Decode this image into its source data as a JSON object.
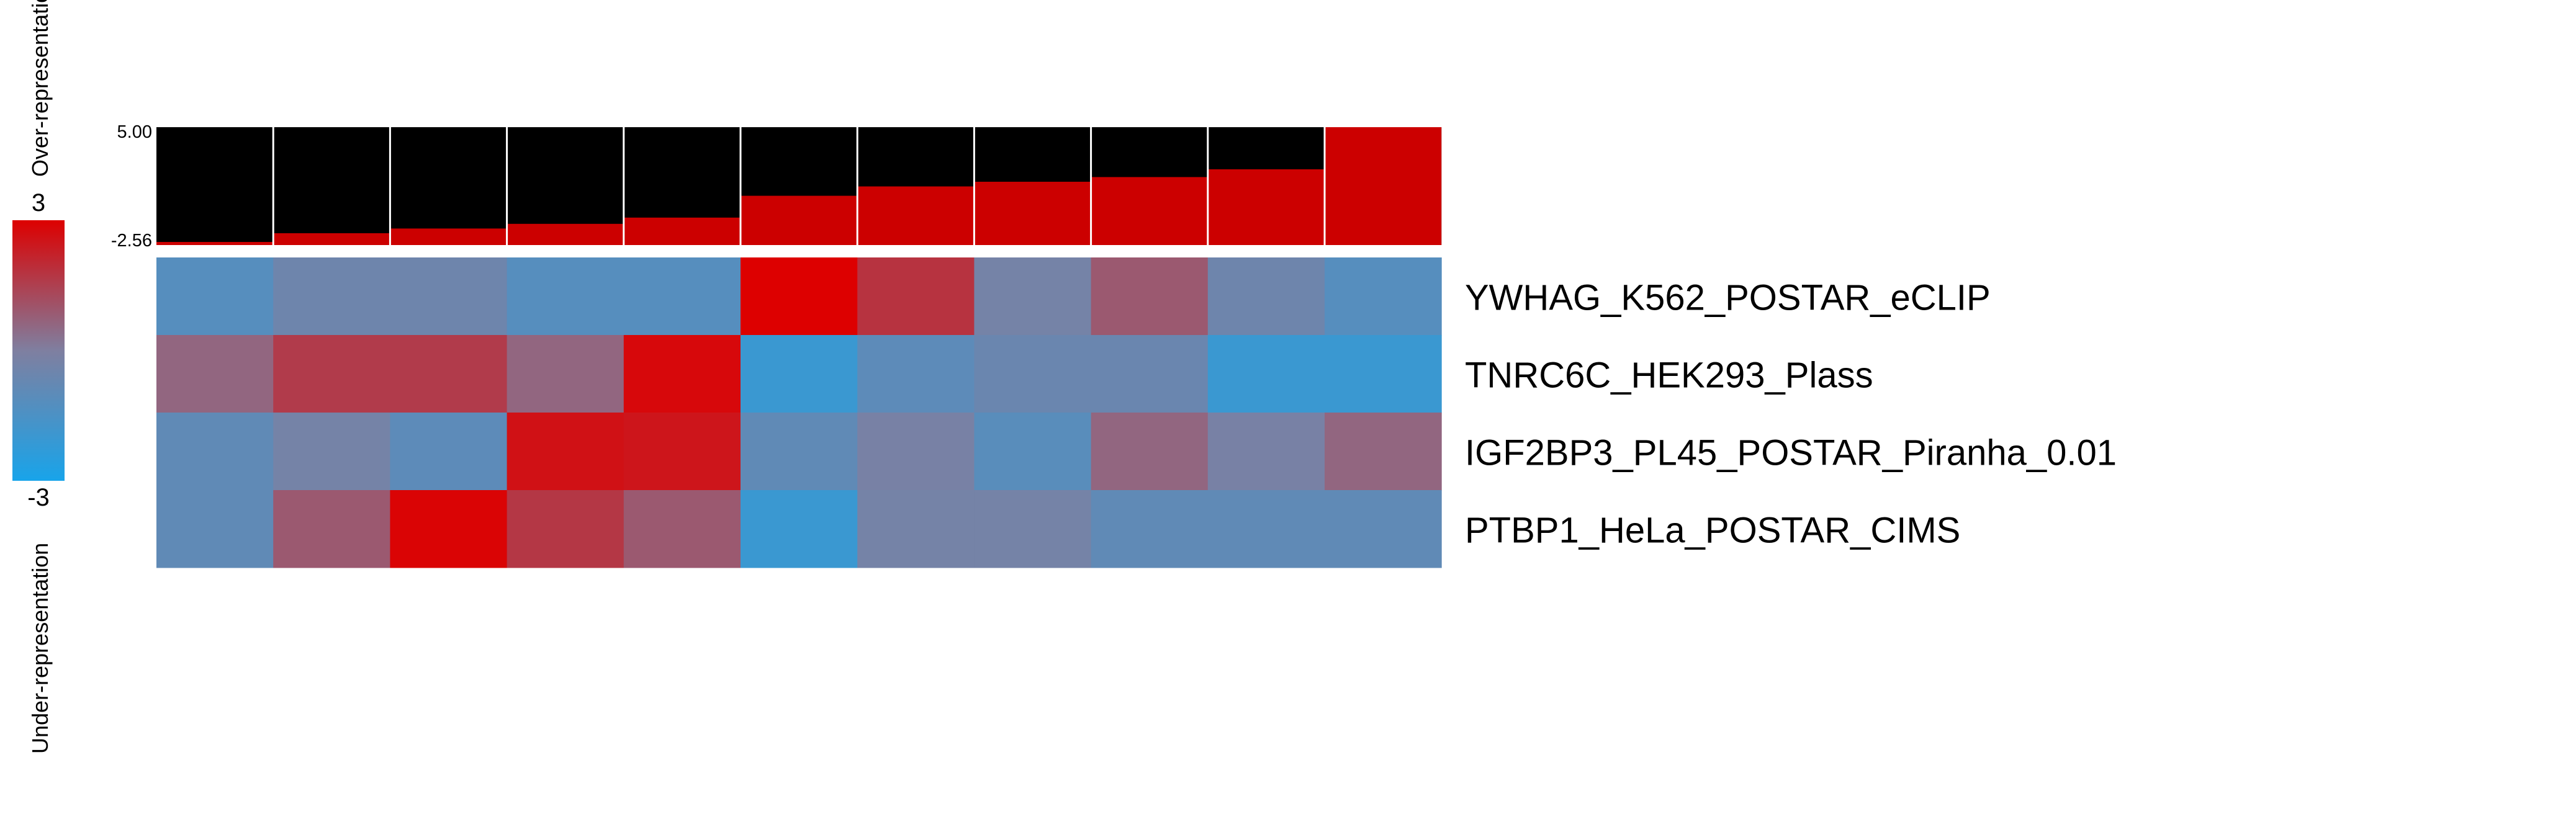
{
  "chart_data": {
    "type": "heatmap",
    "legend": {
      "max_label": "3",
      "min_label": "-3",
      "over_label": "Over-representation",
      "under_label": "Under-representation",
      "range": [
        -3,
        3
      ],
      "colors": {
        "low": "#18a4ea",
        "mid": "#7f7fa0",
        "high": "#dd0000"
      }
    },
    "bar_panel": {
      "ylim": [
        -2.56,
        5.0
      ],
      "y_max_label": "5.00",
      "y_min_label": "-2.56",
      "background": "#000000",
      "bar_color": "#cc0000",
      "values": [
        -2.56,
        -1.8,
        -1.5,
        -1.2,
        -0.8,
        0.6,
        1.2,
        1.5,
        1.8,
        2.3,
        5.0
      ]
    },
    "rows": [
      "YWHAG_K562_POSTAR_eCLIP",
      "TNRC6C_HEK293_Plass",
      "IGF2BP3_PL45_POSTAR_Piranha_0.01",
      "PTBP1_HeLa_POSTAR_CIMS"
    ],
    "values": [
      [
        -1.2,
        -0.5,
        -0.5,
        -1.2,
        -1.2,
        3.0,
        1.8,
        -0.3,
        0.9,
        -0.5,
        -1.2
      ],
      [
        0.6,
        1.6,
        1.6,
        0.6,
        2.8,
        -2.0,
        -1.0,
        -0.6,
        -0.6,
        -2.0,
        -2.0
      ],
      [
        -0.9,
        -0.3,
        -1.0,
        2.6,
        2.5,
        -0.9,
        -0.2,
        -1.1,
        0.6,
        -0.2,
        0.6
      ],
      [
        -0.9,
        0.9,
        2.9,
        1.7,
        0.9,
        -2.0,
        -0.3,
        -0.3,
        -0.9,
        -0.9,
        -0.9
      ]
    ]
  }
}
